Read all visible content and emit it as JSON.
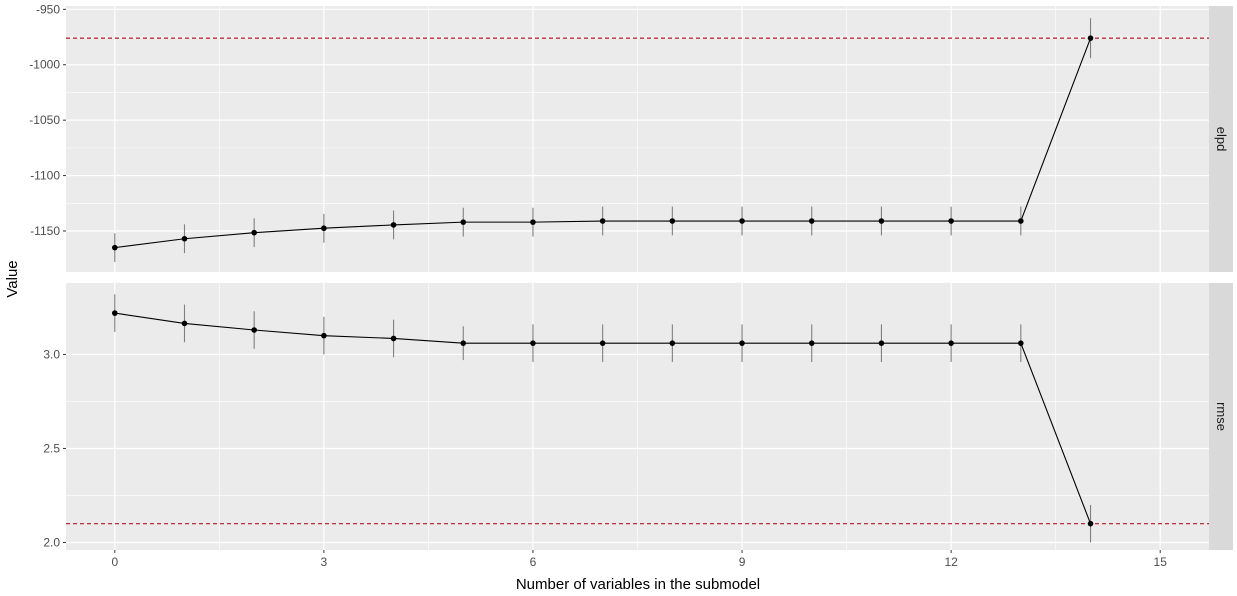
{
  "chart_data": {
    "type": "line",
    "xlabel": "Number of variables in the submodel",
    "ylabel": "Value",
    "xlim": [
      -0.7,
      15.7
    ],
    "x_ticks": [
      0,
      3,
      6,
      9,
      12,
      15
    ],
    "x": [
      0,
      1,
      2,
      3,
      4,
      5,
      6,
      7,
      8,
      9,
      10,
      11,
      12,
      13,
      14
    ],
    "panels": [
      {
        "strip": "elpd",
        "ylim": [
          -1187,
          -947
        ],
        "y_ticks": [
          -950,
          -1000,
          -1050,
          -1100,
          -1150
        ],
        "y_tick_labels": [
          "-950",
          "-1000",
          "-1050",
          "-1100",
          "-1150"
        ],
        "reference_line": -976,
        "values": [
          -1165,
          -1157,
          -1151.5,
          -1147.5,
          -1144.5,
          -1142,
          -1142,
          -1141,
          -1141,
          -1141,
          -1141,
          -1141,
          -1141,
          -1141,
          -976
        ],
        "lower": [
          -1178,
          -1170,
          -1164.5,
          -1160.5,
          -1157.5,
          -1155,
          -1155,
          -1154,
          -1154,
          -1154,
          -1154,
          -1154,
          -1154,
          -1154,
          -994
        ],
        "upper": [
          -1152,
          -1144,
          -1138.5,
          -1134.5,
          -1131.5,
          -1129,
          -1129,
          -1128,
          -1128,
          -1128,
          -1128,
          -1128,
          -1128,
          -1128,
          -958
        ]
      },
      {
        "strip": "rmse",
        "ylim": [
          1.96,
          3.38
        ],
        "y_ticks": [
          3.0,
          2.5,
          2.0
        ],
        "y_tick_labels": [
          "3.0",
          "2.5",
          "2.0"
        ],
        "reference_line": 2.1,
        "values": [
          3.22,
          3.165,
          3.13,
          3.1,
          3.085,
          3.06,
          3.06,
          3.06,
          3.06,
          3.06,
          3.06,
          3.06,
          3.06,
          3.06,
          2.1
        ],
        "lower": [
          3.12,
          3.065,
          3.03,
          3.0,
          2.985,
          2.97,
          2.96,
          2.96,
          2.96,
          2.96,
          2.96,
          2.96,
          2.96,
          2.96,
          2.0
        ],
        "upper": [
          3.32,
          3.265,
          3.23,
          3.2,
          3.185,
          3.15,
          3.16,
          3.16,
          3.16,
          3.16,
          3.16,
          3.16,
          3.16,
          3.16,
          2.2
        ]
      }
    ],
    "colors": {
      "panel_background": "#ebebeb",
      "grid": "#ffffff",
      "strip_background": "#d9d9d9",
      "series": "#000000",
      "errorbar": "#7f7f7f",
      "reference": "#b2182b"
    },
    "grid": true,
    "legend": "none"
  }
}
